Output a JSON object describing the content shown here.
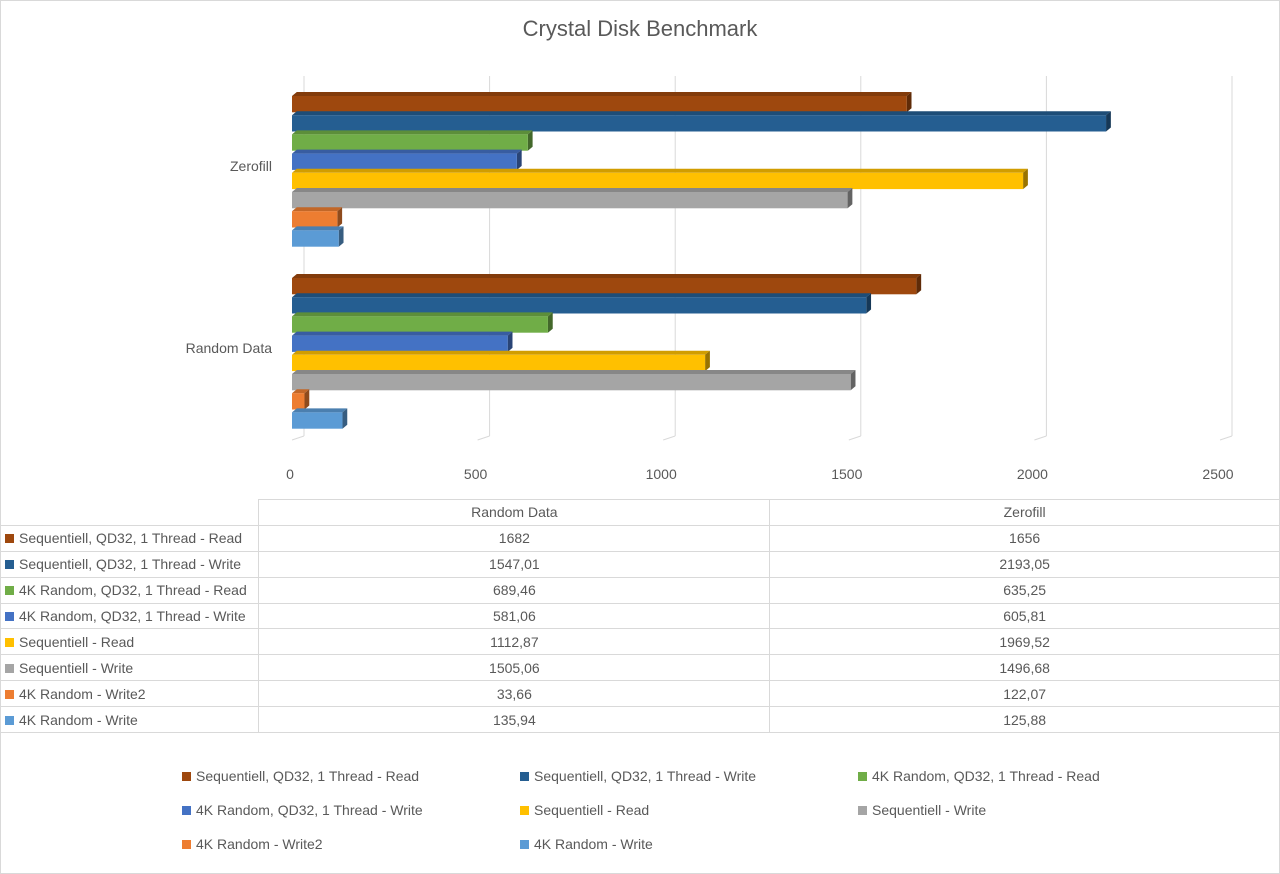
{
  "chart_data": {
    "type": "bar",
    "orientation": "horizontal",
    "style": "3d",
    "title": "Crystal Disk Benchmark",
    "categories": [
      "Random Data",
      "Zerofill"
    ],
    "xlim": [
      0,
      2500
    ],
    "xticks": [
      "0",
      "500",
      "1000",
      "1500",
      "2000",
      "2500"
    ],
    "grid": true,
    "legend_position": "bottom",
    "series": [
      {
        "name": "Sequentiell, QD32, 1 Thread - Read",
        "color": "#9E480E",
        "values": [
          1682,
          1656
        ],
        "labels": [
          "1682",
          "1656"
        ]
      },
      {
        "name": "Sequentiell, QD32, 1 Thread - Write",
        "color": "#255E91",
        "values": [
          1547.01,
          2193.05
        ],
        "labels": [
          "1547,01",
          "2193,05"
        ]
      },
      {
        "name": "4K Random, QD32, 1 Thread - Read",
        "color": "#70AD47",
        "values": [
          689.46,
          635.25
        ],
        "labels": [
          "689,46",
          "635,25"
        ]
      },
      {
        "name": "4K Random, QD32, 1 Thread - Write",
        "color": "#4472C4",
        "values": [
          581.06,
          605.81
        ],
        "labels": [
          "581,06",
          "605,81"
        ]
      },
      {
        "name": "Sequentiell - Read",
        "color": "#FFC000",
        "values": [
          1112.87,
          1969.52
        ],
        "labels": [
          "1112,87",
          "1969,52"
        ]
      },
      {
        "name": "Sequentiell - Write",
        "color": "#A5A5A5",
        "values": [
          1505.06,
          1496.68
        ],
        "labels": [
          "1505,06",
          "1496,68"
        ]
      },
      {
        "name": "4K Random - Write2",
        "color": "#ED7D31",
        "values": [
          33.66,
          122.07
        ],
        "labels": [
          "33,66",
          "122,07"
        ]
      },
      {
        "name": "4K Random - Write",
        "color": "#5B9BD5",
        "values": [
          135.94,
          125.88
        ],
        "labels": [
          "135,94",
          "125,88"
        ]
      }
    ]
  }
}
